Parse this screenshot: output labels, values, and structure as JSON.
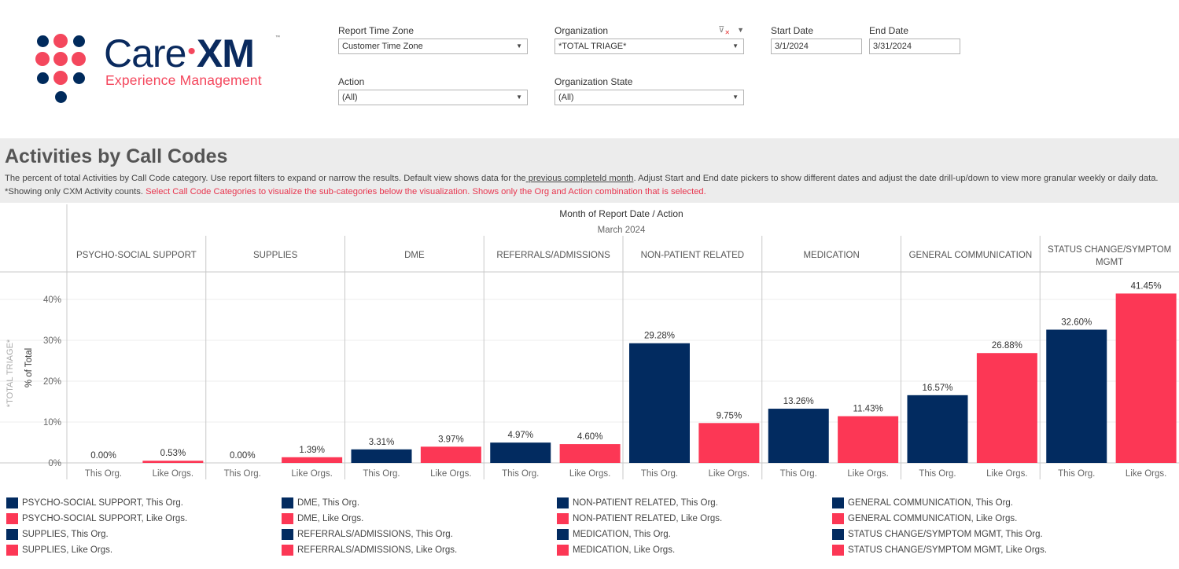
{
  "logo": {
    "brand_left": "Care",
    "brand_sep": "•",
    "brand_right": "XM",
    "trademark": "™",
    "tagline": "Experience Management"
  },
  "filters": {
    "report_time_zone": {
      "label": "Report Time Zone",
      "value": "Customer Time Zone"
    },
    "organization": {
      "label": "Organization",
      "value": "*TOTAL TRIAGE*",
      "clear_filter_icon": "filter-clear-icon",
      "menu_icon": "dropdown-arrow-icon"
    },
    "start_date": {
      "label": "Start Date",
      "value": "3/1/2024"
    },
    "end_date": {
      "label": "End Date",
      "value": "3/31/2024"
    },
    "action": {
      "label": "Action",
      "value": "(All)"
    },
    "organization_state": {
      "label": "Organization State",
      "value": "(All)"
    }
  },
  "section": {
    "title": "Activities by Call Codes",
    "desc_part1": "The percent of total Activities by Call Code category. Use report filters to expand or narrow the results. Default view shows data for the",
    "desc_link": " previous completeld month",
    "desc_part2": ". Adjust Start and End date pickers to show different dates and adjust the date drill-up/down to view more granular weekly or daily data. *Showing only CXM Activity counts. ",
    "desc_red": "Select Call Code Categories to visualize the sub-categories below the visualization. Shows only the Org and Action combination that is selected."
  },
  "colors": {
    "this_org": "#022b60",
    "like_orgs": "#fc3755",
    "accent_red": "#e8364f"
  },
  "chart_data": {
    "type": "bar",
    "title": "Month of Report Date / Action",
    "subtitle": "March 2024",
    "row_label": "*TOTAL TRIAGE*",
    "ylabel": "% of Total",
    "xlabel": "",
    "ylim": [
      0,
      45
    ],
    "yticks": [
      0,
      10,
      20,
      30,
      40
    ],
    "ytick_labels": [
      "0%",
      "10%",
      "20%",
      "30%",
      "40%"
    ],
    "grid": true,
    "categories": [
      "PSYCHO-SOCIAL SUPPORT",
      "SUPPLIES",
      "DME",
      "REFERRALS/ADMISSIONS",
      "NON-PATIENT RELATED",
      "MEDICATION",
      "GENERAL COMMUNICATION",
      "STATUS CHANGE/SYMPTOM MGMT"
    ],
    "sub_categories": [
      "This Org.",
      "Like Orgs."
    ],
    "series": [
      {
        "name": "This Org.",
        "values": [
          0.0,
          0.0,
          3.31,
          4.97,
          29.28,
          13.26,
          16.57,
          32.6
        ]
      },
      {
        "name": "Like Orgs.",
        "values": [
          0.53,
          1.39,
          3.97,
          4.6,
          9.75,
          11.43,
          26.88,
          41.45
        ]
      }
    ],
    "data_labels": [
      [
        "0.00%",
        "0.53%"
      ],
      [
        "0.00%",
        "1.39%"
      ],
      [
        "3.31%",
        "3.97%"
      ],
      [
        "4.97%",
        "4.60%"
      ],
      [
        "29.28%",
        "9.75%"
      ],
      [
        "13.26%",
        "11.43%"
      ],
      [
        "16.57%",
        "26.88%"
      ],
      [
        "32.60%",
        "41.45%"
      ]
    ],
    "legend_placement": "bottom"
  },
  "legend": {
    "columns": [
      [
        {
          "label": "PSYCHO-SOCIAL SUPPORT, This Org.",
          "series": "this_org"
        },
        {
          "label": "PSYCHO-SOCIAL SUPPORT, Like Orgs.",
          "series": "like_orgs"
        },
        {
          "label": "SUPPLIES, This Org.",
          "series": "this_org"
        },
        {
          "label": "SUPPLIES, Like Orgs.",
          "series": "like_orgs"
        }
      ],
      [
        {
          "label": "DME, This Org.",
          "series": "this_org"
        },
        {
          "label": "DME, Like Orgs.",
          "series": "like_orgs"
        },
        {
          "label": "REFERRALS/ADMISSIONS, This Org.",
          "series": "this_org"
        },
        {
          "label": "REFERRALS/ADMISSIONS, Like Orgs.",
          "series": "like_orgs"
        }
      ],
      [
        {
          "label": "NON-PATIENT RELATED, This Org.",
          "series": "this_org"
        },
        {
          "label": "NON-PATIENT RELATED, Like Orgs.",
          "series": "like_orgs"
        },
        {
          "label": "MEDICATION, This Org.",
          "series": "this_org"
        },
        {
          "label": "MEDICATION, Like Orgs.",
          "series": "like_orgs"
        }
      ],
      [
        {
          "label": "GENERAL COMMUNICATION, This Org.",
          "series": "this_org"
        },
        {
          "label": "GENERAL COMMUNICATION, Like Orgs.",
          "series": "like_orgs"
        },
        {
          "label": "STATUS CHANGE/SYMPTOM MGMT, This Org.",
          "series": "this_org"
        },
        {
          "label": "STATUS CHANGE/SYMPTOM MGMT, Like Orgs.",
          "series": "like_orgs"
        }
      ]
    ]
  }
}
